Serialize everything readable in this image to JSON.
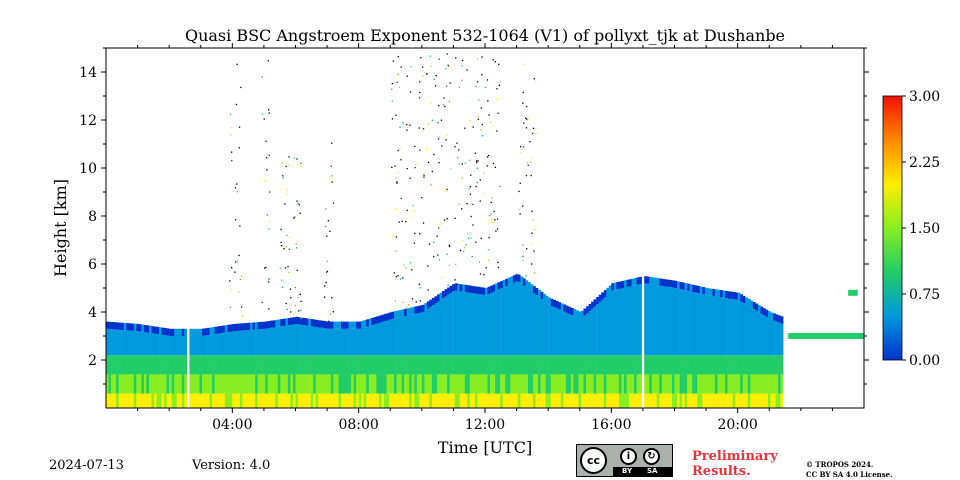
{
  "chart_data": {
    "type": "heatmap",
    "title": "Quasi BSC Angstroem Exponent 532-1064 (V1) of pollyxt_tjk at Dushanbe",
    "xlabel": "Time [UTC]",
    "ylabel": "Height [km]",
    "x_range_hours": [
      0,
      24
    ],
    "y_range_km": [
      0,
      15
    ],
    "x_ticks": [
      {
        "hour": 4,
        "label": "04:00"
      },
      {
        "hour": 8,
        "label": "08:00"
      },
      {
        "hour": 12,
        "label": "12:00"
      },
      {
        "hour": 16,
        "label": "16:00"
      },
      {
        "hour": 20,
        "label": "20:00"
      }
    ],
    "y_ticks": [
      {
        "km": 2,
        "label": "2"
      },
      {
        "km": 4,
        "label": "4"
      },
      {
        "km": 6,
        "label": "6"
      },
      {
        "km": 8,
        "label": "8"
      },
      {
        "km": 10,
        "label": "10"
      },
      {
        "km": 12,
        "label": "12"
      },
      {
        "km": 14,
        "label": "14"
      }
    ],
    "colorbar": {
      "range": [
        0,
        3
      ],
      "ticks": [
        {
          "value": 0,
          "label": "0.00"
        },
        {
          "value": 0.75,
          "label": "0.75"
        },
        {
          "value": 1.5,
          "label": "1.50"
        },
        {
          "value": 2.25,
          "label": "2.25"
        },
        {
          "value": 3,
          "label": "3.00"
        }
      ],
      "colors": [
        "#0033cc",
        "#0099dd",
        "#22cc66",
        "#88ee22",
        "#ffee00",
        "#ff8800",
        "#ee1100"
      ]
    },
    "layer_top_km": [
      [
        0.0,
        3.6
      ],
      [
        1.0,
        3.5
      ],
      [
        2.0,
        3.3
      ],
      [
        3.0,
        3.3
      ],
      [
        4.0,
        3.5
      ],
      [
        5.0,
        3.6
      ],
      [
        6.0,
        3.8
      ],
      [
        7.0,
        3.6
      ],
      [
        8.0,
        3.6
      ],
      [
        9.0,
        4.0
      ],
      [
        10.0,
        4.3
      ],
      [
        11.0,
        5.2
      ],
      [
        12.0,
        5.0
      ],
      [
        13.0,
        5.6
      ],
      [
        14.0,
        4.6
      ],
      [
        15.0,
        4.0
      ],
      [
        16.0,
        5.2
      ],
      [
        17.0,
        5.5
      ],
      [
        18.0,
        5.3
      ],
      [
        19.0,
        5.0
      ],
      [
        20.0,
        4.8
      ],
      [
        21.0,
        4.0
      ],
      [
        21.4,
        3.8
      ]
    ],
    "thin_layer_segments": [
      {
        "start_hour": 21.6,
        "end_hour": 24.0,
        "height_km": 3.0
      },
      {
        "start_hour": 23.5,
        "end_hour": 23.8,
        "height_km": 4.8
      }
    ],
    "data_gaps_hours": [
      [
        21.4,
        21.6
      ],
      [
        16.9,
        17.0
      ],
      [
        2.5,
        2.6
      ]
    ],
    "sparse_plumes": [
      {
        "start_hour": 3.9,
        "end_hour": 4.3,
        "top_km": 14.8
      },
      {
        "start_hour": 4.9,
        "end_hour": 5.2,
        "top_km": 14.8
      },
      {
        "start_hour": 5.5,
        "end_hour": 6.2,
        "top_km": 10.5
      },
      {
        "start_hour": 6.9,
        "end_hour": 7.2,
        "top_km": 11.5
      },
      {
        "start_hour": 9.0,
        "end_hour": 12.5,
        "top_km": 14.8
      },
      {
        "start_hour": 13.0,
        "end_hour": 13.6,
        "top_km": 14.5
      }
    ]
  },
  "footer": {
    "date": "2024-07-13",
    "version": "Version: 4.0",
    "preliminary_line1": "Preliminary",
    "preliminary_line2": "Results.",
    "copyright_line1": "© TROPOS 2024.",
    "copyright_line2": "CC BY SA 4.0 License."
  },
  "license_badge": {
    "cc": "cc",
    "by": "BY",
    "sa": "SA",
    "by_symbol": "i",
    "sa_symbol": "↻"
  }
}
